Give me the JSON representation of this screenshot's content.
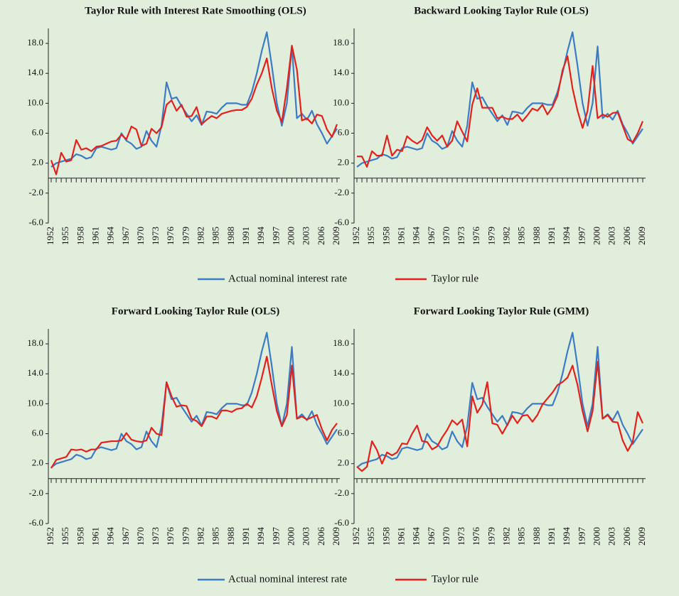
{
  "chart_data": [
    {
      "type": "line",
      "title": "Taylor Rule with Interest Rate Smoothing (OLS)",
      "x": [
        1952,
        1953,
        1954,
        1955,
        1956,
        1957,
        1958,
        1959,
        1960,
        1961,
        1962,
        1963,
        1964,
        1965,
        1966,
        1967,
        1968,
        1969,
        1970,
        1971,
        1972,
        1973,
        1974,
        1975,
        1976,
        1977,
        1978,
        1979,
        1980,
        1981,
        1982,
        1983,
        1984,
        1985,
        1986,
        1987,
        1988,
        1989,
        1990,
        1991,
        1992,
        1993,
        1994,
        1995,
        1996,
        1997,
        1998,
        1999,
        2000,
        2001,
        2002,
        2003,
        2004,
        2005,
        2006,
        2007,
        2008,
        2009
      ],
      "xlim": [
        1952,
        2009
      ],
      "xticks": [
        1952,
        1955,
        1958,
        1961,
        1964,
        1967,
        1970,
        1973,
        1976,
        1979,
        1982,
        1985,
        1988,
        1991,
        1994,
        1997,
        2000,
        2003,
        2006,
        2009
      ],
      "ylim": [
        -6,
        20
      ],
      "yticks": [
        {
          "value": -6,
          "label": "-6.0"
        },
        {
          "value": -2,
          "label": "-2.0"
        },
        {
          "value": 2,
          "label": "2.0"
        },
        {
          "value": 6,
          "label": "6.0"
        },
        {
          "value": 10,
          "label": "10.0"
        },
        {
          "value": 14,
          "label": "14.0"
        },
        {
          "value": 18,
          "label": "18.0"
        }
      ],
      "series": [
        {
          "name": "Actual nominal interest rate",
          "color": "#3b7cc4",
          "values": [
            1.5,
            2.0,
            2.2,
            2.4,
            2.6,
            3.2,
            3.0,
            2.6,
            2.8,
            4.0,
            4.2,
            4.0,
            3.8,
            4.0,
            6.0,
            5.0,
            4.6,
            3.9,
            4.2,
            6.3,
            5.0,
            4.2,
            7.0,
            12.8,
            10.6,
            10.8,
            9.6,
            8.6,
            7.6,
            8.4,
            7.1,
            8.9,
            8.8,
            8.6,
            9.4,
            10.0,
            10.0,
            10.0,
            9.8,
            9.8,
            11.5,
            14.0,
            17.0,
            19.5,
            15.0,
            10.0,
            7.0,
            10.0,
            17.6,
            8.0,
            8.6,
            7.8,
            9.0,
            7.2,
            6.0,
            4.6,
            5.6,
            6.6
          ]
        },
        {
          "name": "Taylor rule",
          "color": "#e3211c",
          "values": [
            2.4,
            0.5,
            3.4,
            2.2,
            2.4,
            5.1,
            3.8,
            4.0,
            3.6,
            4.2,
            4.3,
            4.6,
            4.9,
            5.0,
            5.8,
            5.2,
            6.9,
            6.5,
            4.3,
            4.6,
            6.6,
            6.0,
            6.8,
            9.8,
            10.4,
            9.0,
            9.8,
            8.2,
            8.3,
            9.5,
            7.2,
            7.8,
            8.3,
            8.0,
            8.6,
            8.8,
            9.0,
            9.1,
            9.1,
            9.5,
            10.6,
            12.5,
            14.0,
            16.0,
            12.0,
            9.0,
            7.5,
            12.0,
            17.7,
            14.5,
            7.7,
            8.0,
            7.3,
            8.5,
            8.3,
            6.5,
            5.5,
            7.2
          ]
        }
      ]
    },
    {
      "type": "line",
      "title": "Backward Looking Taylor Rule (OLS)",
      "x": [
        1952,
        1953,
        1954,
        1955,
        1956,
        1957,
        1958,
        1959,
        1960,
        1961,
        1962,
        1963,
        1964,
        1965,
        1966,
        1967,
        1968,
        1969,
        1970,
        1971,
        1972,
        1973,
        1974,
        1975,
        1976,
        1977,
        1978,
        1979,
        1980,
        1981,
        1982,
        1983,
        1984,
        1985,
        1986,
        1987,
        1988,
        1989,
        1990,
        1991,
        1992,
        1993,
        1994,
        1995,
        1996,
        1997,
        1998,
        1999,
        2000,
        2001,
        2002,
        2003,
        2004,
        2005,
        2006,
        2007,
        2008,
        2009
      ],
      "xlim": [
        1952,
        2009
      ],
      "xticks": [
        1952,
        1955,
        1958,
        1961,
        1964,
        1967,
        1970,
        1973,
        1976,
        1979,
        1982,
        1985,
        1988,
        1991,
        1994,
        1997,
        2000,
        2003,
        2006,
        2009
      ],
      "ylim": [
        -6,
        20
      ],
      "yticks": [
        {
          "value": -6,
          "label": "-6.0"
        },
        {
          "value": -2,
          "label": "-2.0"
        },
        {
          "value": 2,
          "label": "2.0"
        },
        {
          "value": 6,
          "label": "6.0"
        },
        {
          "value": 10,
          "label": "10.0"
        },
        {
          "value": 14,
          "label": "14.0"
        },
        {
          "value": 18,
          "label": "18.0"
        }
      ],
      "series": [
        {
          "color": "#3b7cc4",
          "values": [
            1.5,
            2.0,
            2.2,
            2.4,
            2.6,
            3.2,
            3.0,
            2.6,
            2.8,
            4.0,
            4.2,
            4.0,
            3.8,
            4.0,
            6.0,
            5.0,
            4.6,
            3.9,
            4.2,
            6.3,
            5.0,
            4.2,
            7.0,
            12.8,
            10.6,
            10.8,
            9.6,
            8.6,
            7.6,
            8.4,
            7.1,
            8.9,
            8.8,
            8.6,
            9.4,
            10.0,
            10.0,
            10.0,
            9.8,
            9.8,
            11.5,
            14.0,
            17.0,
            19.5,
            15.0,
            10.0,
            7.0,
            10.0,
            17.6,
            8.0,
            8.6,
            7.8,
            9.0,
            7.2,
            6.0,
            4.6,
            5.6,
            6.6
          ]
        },
        {
          "color": "#e3211c",
          "values": [
            2.9,
            2.9,
            1.5,
            3.6,
            3.0,
            3.0,
            5.7,
            3.0,
            3.8,
            3.6,
            5.6,
            5.0,
            4.6,
            5.1,
            6.8,
            5.7,
            5.0,
            5.7,
            4.2,
            5.0,
            7.6,
            6.2,
            4.9,
            9.8,
            12.0,
            9.4,
            9.4,
            9.4,
            8.0,
            8.2,
            7.9,
            7.9,
            8.5,
            7.6,
            8.4,
            9.3,
            9.0,
            9.8,
            8.5,
            9.5,
            11.0,
            14.4,
            16.3,
            12.0,
            9.0,
            6.7,
            9.0,
            15.0,
            8.0,
            8.5,
            8.2,
            8.7,
            8.8,
            7.0,
            5.2,
            4.8,
            6.0,
            7.6
          ]
        }
      ]
    },
    {
      "type": "line",
      "title": "Forward Looking Taylor Rule (OLS)",
      "x": [
        1952,
        1953,
        1954,
        1955,
        1956,
        1957,
        1958,
        1959,
        1960,
        1961,
        1962,
        1963,
        1964,
        1965,
        1966,
        1967,
        1968,
        1969,
        1970,
        1971,
        1972,
        1973,
        1974,
        1975,
        1976,
        1977,
        1978,
        1979,
        1980,
        1981,
        1982,
        1983,
        1984,
        1985,
        1986,
        1987,
        1988,
        1989,
        1990,
        1991,
        1992,
        1993,
        1994,
        1995,
        1996,
        1997,
        1998,
        1999,
        2000,
        2001,
        2002,
        2003,
        2004,
        2005,
        2006,
        2007,
        2008,
        2009
      ],
      "xlim": [
        1952,
        2009
      ],
      "xticks": [
        1952,
        1955,
        1958,
        1961,
        1964,
        1967,
        1970,
        1973,
        1976,
        1979,
        1982,
        1985,
        1988,
        1991,
        1994,
        1997,
        2000,
        2003,
        2006,
        2009
      ],
      "ylim": [
        -6,
        20
      ],
      "yticks": [
        {
          "value": -6,
          "label": "-6.0"
        },
        {
          "value": -2,
          "label": "-2.0"
        },
        {
          "value": 2,
          "label": "2.0"
        },
        {
          "value": 6,
          "label": "6.0"
        },
        {
          "value": 10,
          "label": "10.0"
        },
        {
          "value": 14,
          "label": "14.0"
        },
        {
          "value": 18,
          "label": "18.0"
        }
      ],
      "series": [
        {
          "name": "Actual nominal interest rate",
          "color": "#3b7cc4",
          "values": [
            1.5,
            2.0,
            2.2,
            2.4,
            2.6,
            3.2,
            3.0,
            2.6,
            2.8,
            4.0,
            4.2,
            4.0,
            3.8,
            4.0,
            6.0,
            5.0,
            4.6,
            3.9,
            4.2,
            6.3,
            5.0,
            4.2,
            7.0,
            12.8,
            10.6,
            10.8,
            9.6,
            8.6,
            7.6,
            8.4,
            7.1,
            8.9,
            8.8,
            8.6,
            9.4,
            10.0,
            10.0,
            10.0,
            9.8,
            9.8,
            11.5,
            14.0,
            17.0,
            19.5,
            15.0,
            10.0,
            7.0,
            10.0,
            17.6,
            8.0,
            8.6,
            7.8,
            9.0,
            7.2,
            6.0,
            4.6,
            5.6,
            6.6
          ]
        },
        {
          "name": "Taylor rule",
          "color": "#e3211c",
          "values": [
            1.4,
            2.5,
            2.7,
            2.9,
            3.9,
            3.8,
            3.9,
            3.6,
            3.9,
            3.9,
            4.8,
            4.9,
            5.0,
            5.0,
            5.1,
            6.1,
            5.2,
            5.0,
            4.9,
            5.1,
            6.8,
            6.0,
            5.8,
            12.9,
            11.0,
            9.6,
            9.8,
            9.7,
            8.0,
            7.7,
            7.0,
            8.3,
            8.3,
            8.0,
            9.1,
            9.1,
            8.9,
            9.3,
            9.4,
            10.0,
            9.5,
            11.0,
            13.5,
            16.3,
            12.5,
            9.0,
            7.0,
            8.5,
            15.1,
            8.0,
            8.3,
            7.9,
            8.2,
            8.5,
            6.6,
            5.1,
            6.5,
            7.4
          ]
        }
      ]
    },
    {
      "type": "line",
      "title": "Forward Looking Taylor Rule (GMM)",
      "x": [
        1952,
        1953,
        1954,
        1955,
        1956,
        1957,
        1958,
        1959,
        1960,
        1961,
        1962,
        1963,
        1964,
        1965,
        1966,
        1967,
        1968,
        1969,
        1970,
        1971,
        1972,
        1973,
        1974,
        1975,
        1976,
        1977,
        1978,
        1979,
        1980,
        1981,
        1982,
        1983,
        1984,
        1985,
        1986,
        1987,
        1988,
        1989,
        1990,
        1991,
        1992,
        1993,
        1994,
        1995,
        1996,
        1997,
        1998,
        1999,
        2000,
        2001,
        2002,
        2003,
        2004,
        2005,
        2006,
        2007,
        2008,
        2009
      ],
      "xlim": [
        1952,
        2009
      ],
      "xticks": [
        1952,
        1955,
        1958,
        1961,
        1964,
        1967,
        1970,
        1973,
        1976,
        1979,
        1982,
        1985,
        1988,
        1991,
        1994,
        1997,
        2000,
        2003,
        2006,
        2009
      ],
      "ylim": [
        -6,
        20
      ],
      "yticks": [
        {
          "value": -6,
          "label": "-6.0"
        },
        {
          "value": -2,
          "label": "-2.0"
        },
        {
          "value": 2,
          "label": "2.0"
        },
        {
          "value": 6,
          "label": "6.0"
        },
        {
          "value": 10,
          "label": "10.0"
        },
        {
          "value": 14,
          "label": "14.0"
        },
        {
          "value": 18,
          "label": "18.0"
        }
      ],
      "series": [
        {
          "color": "#3b7cc4",
          "values": [
            1.5,
            2.0,
            2.2,
            2.4,
            2.6,
            3.2,
            3.0,
            2.6,
            2.8,
            4.0,
            4.2,
            4.0,
            3.8,
            4.0,
            6.0,
            5.0,
            4.6,
            3.9,
            4.2,
            6.3,
            5.0,
            4.2,
            7.0,
            12.8,
            10.6,
            10.8,
            9.6,
            8.6,
            7.6,
            8.4,
            7.1,
            8.9,
            8.8,
            8.6,
            9.4,
            10.0,
            10.0,
            10.0,
            9.8,
            9.8,
            11.5,
            14.0,
            17.0,
            19.5,
            15.0,
            10.0,
            7.0,
            10.0,
            17.6,
            8.0,
            8.6,
            7.8,
            9.0,
            7.2,
            6.0,
            4.6,
            5.6,
            6.6
          ]
        },
        {
          "color": "#e3211c",
          "values": [
            1.6,
            1.0,
            1.6,
            5.0,
            3.8,
            2.0,
            3.5,
            3.1,
            3.5,
            4.7,
            4.6,
            6.0,
            7.1,
            5.0,
            4.9,
            3.9,
            4.3,
            5.5,
            6.5,
            7.8,
            7.2,
            7.9,
            4.3,
            11.0,
            8.8,
            9.9,
            12.9,
            7.4,
            7.2,
            6.0,
            7.2,
            8.4,
            7.4,
            8.4,
            8.5,
            7.6,
            8.5,
            9.9,
            10.7,
            11.5,
            12.5,
            12.9,
            13.5,
            15.1,
            12.5,
            9.0,
            6.3,
            9.0,
            15.6,
            8.0,
            8.5,
            7.6,
            7.5,
            5.1,
            3.7,
            4.9,
            8.9,
            7.4
          ]
        }
      ]
    }
  ]
}
